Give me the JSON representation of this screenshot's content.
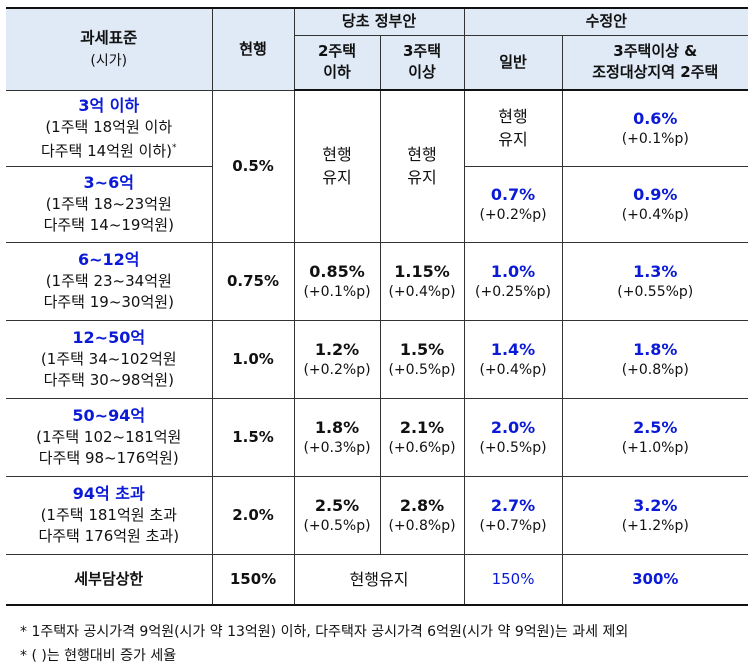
{
  "header": {
    "bracket_title": "과세표준",
    "bracket_sub": "(시가)",
    "current": "현행",
    "original": "당초 정부안",
    "orig_2": [
      "2주택",
      "이하"
    ],
    "orig_3": [
      "3주택",
      "이상"
    ],
    "revised": "수정안",
    "rev_general": "일반",
    "rev_3": [
      "3주택이상 &",
      "조정대상지역 2주택"
    ]
  },
  "rows": [
    {
      "bracket": "3억 이하",
      "l1": "(1주택 18억원 이하",
      "l2": "다주택 14억원 이하)",
      "mark": "*",
      "current": "0.5%",
      "orig_keep": [
        "현행",
        "유지"
      ],
      "rev_general_keep": [
        "현행",
        "유지"
      ],
      "rev_3": "0.6%",
      "rev_3_d": "(+0.1%p)"
    },
    {
      "bracket": "3~6억",
      "l1": "(1주택 18~23억원",
      "l2": "다주택 14~19억원)",
      "rev_general": "0.7%",
      "rev_general_d": "(+0.2%p)",
      "rev_3": "0.9%",
      "rev_3_d": "(+0.4%p)"
    },
    {
      "bracket": "6~12억",
      "l1": "(1주택 23~34억원",
      "l2": "다주택 19~30억원)",
      "current": "0.75%",
      "orig_2": "0.85%",
      "orig_2_d": "(+0.1%p)",
      "orig_3": "1.15%",
      "orig_3_d": "(+0.4%p)",
      "rev_general": "1.0%",
      "rev_general_d": "(+0.25%p)",
      "rev_3": "1.3%",
      "rev_3_d": "(+0.55%p)"
    },
    {
      "bracket": "12~50억",
      "l1": "(1주택 34~102억원",
      "l2": "다주택 30~98억원)",
      "current": "1.0%",
      "orig_2": "1.2%",
      "orig_2_d": "(+0.2%p)",
      "orig_3": "1.5%",
      "orig_3_d": "(+0.5%p)",
      "rev_general": "1.4%",
      "rev_general_d": "(+0.4%p)",
      "rev_3": "1.8%",
      "rev_3_d": "(+0.8%p)"
    },
    {
      "bracket": "50~94억",
      "l1": "(1주택 102~181억원",
      "l2": "다주택 98~176억원)",
      "current": "1.5%",
      "orig_2": "1.8%",
      "orig_2_d": "(+0.3%p)",
      "orig_3": "2.1%",
      "orig_3_d": "(+0.6%p)",
      "rev_general": "2.0%",
      "rev_general_d": "(+0.5%p)",
      "rev_3": "2.5%",
      "rev_3_d": "(+1.0%p)"
    },
    {
      "bracket": "94억 초과",
      "l1": "(1주택 181억원 초과",
      "l2": "다주택 176억원 초과)",
      "current": "2.0%",
      "orig_2": "2.5%",
      "orig_2_d": "(+0.5%p)",
      "orig_3": "2.8%",
      "orig_3_d": "(+0.8%p)",
      "rev_general": "2.7%",
      "rev_general_d": "(+0.7%p)",
      "rev_3": "3.2%",
      "rev_3_d": "(+1.2%p)"
    }
  ],
  "cap_row": {
    "label": "세부담상한",
    "current": "150%",
    "original": "현행유지",
    "rev_general": "150%",
    "rev_3": "300%"
  },
  "footnotes": [
    "* 1주택자 공시가격 9억원(시가 약 13억원) 이하, 다주택자 공시가격 6억원(시가 약 9억원)는 과세 제외",
    "* ( )는 현행대비 증가 세율"
  ],
  "colors": {
    "header_bg": "#dfeaf6",
    "accent_blue": "#0a1ad6",
    "text": "#111111"
  }
}
